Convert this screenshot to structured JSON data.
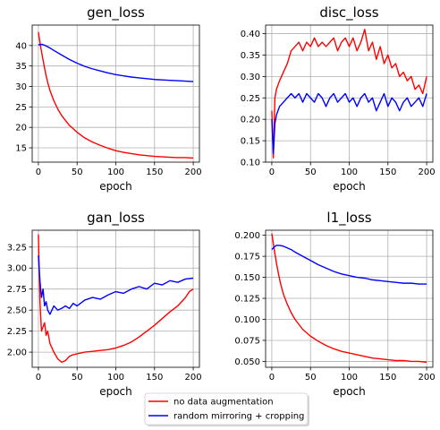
{
  "chart_data": [
    {
      "type": "line",
      "title": "gen_loss",
      "xlabel": "epoch",
      "ylabel": "",
      "xlim": [
        -8,
        208
      ],
      "ylim": [
        11.5,
        45
      ],
      "xticks": [
        0,
        50,
        100,
        150,
        200
      ],
      "yticks": [
        15,
        20,
        25,
        30,
        35,
        40
      ],
      "ytick_labels": [
        "15",
        "20",
        "25",
        "30",
        "35",
        "40"
      ],
      "grid": true,
      "series": [
        {
          "name": "no data augmentation",
          "color": "#ff0000",
          "x": [
            0,
            2,
            4,
            6,
            8,
            10,
            12,
            15,
            20,
            25,
            30,
            40,
            50,
            60,
            70,
            80,
            90,
            100,
            110,
            120,
            130,
            140,
            150,
            160,
            170,
            180,
            190,
            200
          ],
          "y": [
            43.3,
            40.8,
            38.5,
            36.5,
            34.5,
            32.6,
            31.0,
            29.0,
            26.5,
            24.5,
            22.9,
            20.5,
            18.8,
            17.4,
            16.4,
            15.6,
            14.9,
            14.3,
            13.9,
            13.6,
            13.3,
            13.1,
            12.9,
            12.8,
            12.7,
            12.6,
            12.6,
            12.5
          ]
        },
        {
          "name": "random mirroring + cropping",
          "color": "#0000ff",
          "x": [
            0,
            5,
            10,
            15,
            20,
            30,
            40,
            50,
            60,
            70,
            80,
            90,
            100,
            110,
            120,
            130,
            140,
            150,
            160,
            170,
            180,
            190,
            200
          ],
          "y": [
            40.2,
            40.3,
            39.9,
            39.4,
            38.8,
            37.7,
            36.6,
            35.7,
            34.9,
            34.3,
            33.8,
            33.3,
            32.9,
            32.6,
            32.3,
            32.1,
            31.9,
            31.7,
            31.6,
            31.5,
            31.4,
            31.3,
            31.2
          ]
        }
      ]
    },
    {
      "type": "line",
      "title": "disc_loss",
      "xlabel": "epoch",
      "ylabel": "",
      "xlim": [
        -8,
        208
      ],
      "ylim": [
        0.1,
        0.42
      ],
      "xticks": [
        0,
        50,
        100,
        150,
        200
      ],
      "yticks": [
        0.1,
        0.15,
        0.2,
        0.25,
        0.3,
        0.35,
        0.4
      ],
      "ytick_labels": [
        "0.10",
        "0.15",
        "0.20",
        "0.25",
        "0.30",
        "0.35",
        "0.40"
      ],
      "grid": true,
      "series": [
        {
          "name": "no data augmentation",
          "color": "#ff0000",
          "x": [
            0,
            2,
            4,
            6,
            8,
            10,
            15,
            20,
            25,
            30,
            35,
            40,
            45,
            50,
            55,
            60,
            65,
            70,
            75,
            80,
            85,
            90,
            95,
            100,
            105,
            110,
            115,
            120,
            125,
            130,
            135,
            140,
            145,
            150,
            155,
            160,
            165,
            170,
            175,
            180,
            185,
            190,
            195,
            200
          ],
          "y": [
            0.22,
            0.11,
            0.25,
            0.27,
            0.28,
            0.29,
            0.31,
            0.33,
            0.36,
            0.37,
            0.38,
            0.36,
            0.38,
            0.37,
            0.39,
            0.37,
            0.38,
            0.37,
            0.38,
            0.39,
            0.36,
            0.38,
            0.39,
            0.37,
            0.39,
            0.36,
            0.38,
            0.41,
            0.36,
            0.38,
            0.34,
            0.37,
            0.33,
            0.35,
            0.32,
            0.33,
            0.3,
            0.31,
            0.29,
            0.3,
            0.27,
            0.28,
            0.26,
            0.3
          ]
        },
        {
          "name": "random mirroring + cropping",
          "color": "#0000ff",
          "x": [
            0,
            2,
            4,
            6,
            8,
            10,
            15,
            20,
            25,
            30,
            35,
            40,
            45,
            50,
            55,
            60,
            65,
            70,
            75,
            80,
            85,
            90,
            95,
            100,
            105,
            110,
            115,
            120,
            125,
            130,
            135,
            140,
            145,
            150,
            155,
            160,
            165,
            170,
            175,
            180,
            185,
            190,
            195,
            200
          ],
          "y": [
            0.2,
            0.12,
            0.19,
            0.21,
            0.22,
            0.23,
            0.24,
            0.25,
            0.26,
            0.25,
            0.26,
            0.24,
            0.26,
            0.25,
            0.24,
            0.26,
            0.25,
            0.23,
            0.25,
            0.26,
            0.24,
            0.25,
            0.26,
            0.24,
            0.25,
            0.23,
            0.25,
            0.26,
            0.24,
            0.25,
            0.22,
            0.24,
            0.26,
            0.23,
            0.25,
            0.24,
            0.22,
            0.24,
            0.25,
            0.23,
            0.24,
            0.25,
            0.23,
            0.26
          ]
        }
      ]
    },
    {
      "type": "line",
      "title": "gan_loss",
      "xlabel": "epoch",
      "ylabel": "",
      "xlim": [
        -8,
        208
      ],
      "ylim": [
        1.82,
        3.45
      ],
      "xticks": [
        0,
        50,
        100,
        150,
        200
      ],
      "yticks": [
        2.0,
        2.25,
        2.5,
        2.75,
        3.0,
        3.25
      ],
      "ytick_labels": [
        "2.00",
        "2.25",
        "2.50",
        "2.75",
        "3.00",
        "3.25"
      ],
      "grid": true,
      "series": [
        {
          "name": "no data augmentation",
          "color": "#ff0000",
          "x": [
            0,
            2,
            4,
            6,
            8,
            10,
            12,
            15,
            20,
            25,
            30,
            35,
            40,
            45,
            50,
            60,
            70,
            80,
            90,
            100,
            110,
            120,
            130,
            140,
            150,
            160,
            170,
            180,
            190,
            195,
            200
          ],
          "y": [
            3.4,
            2.6,
            2.25,
            2.3,
            2.35,
            2.2,
            2.25,
            2.1,
            2.0,
            1.92,
            1.88,
            1.9,
            1.95,
            1.97,
            1.98,
            2.0,
            2.01,
            2.02,
            2.03,
            2.05,
            2.08,
            2.12,
            2.18,
            2.25,
            2.32,
            2.4,
            2.48,
            2.55,
            2.65,
            2.72,
            2.75
          ]
        },
        {
          "name": "random mirroring + cropping",
          "color": "#0000ff",
          "x": [
            0,
            2,
            4,
            6,
            8,
            10,
            12,
            15,
            20,
            25,
            30,
            35,
            40,
            45,
            50,
            60,
            70,
            80,
            90,
            100,
            110,
            120,
            130,
            140,
            150,
            160,
            170,
            180,
            190,
            200
          ],
          "y": [
            3.15,
            2.85,
            2.65,
            2.75,
            2.55,
            2.6,
            2.5,
            2.45,
            2.55,
            2.5,
            2.52,
            2.55,
            2.52,
            2.58,
            2.55,
            2.62,
            2.65,
            2.63,
            2.68,
            2.72,
            2.7,
            2.75,
            2.78,
            2.75,
            2.82,
            2.8,
            2.85,
            2.83,
            2.87,
            2.88
          ]
        }
      ]
    },
    {
      "type": "line",
      "title": "l1_loss",
      "xlabel": "epoch",
      "ylabel": "",
      "xlim": [
        -8,
        208
      ],
      "ylim": [
        0.043,
        0.206
      ],
      "xticks": [
        0,
        50,
        100,
        150,
        200
      ],
      "yticks": [
        0.05,
        0.075,
        0.1,
        0.125,
        0.15,
        0.175,
        0.2
      ],
      "ytick_labels": [
        "0.050",
        "0.075",
        "0.100",
        "0.125",
        "0.150",
        "0.175",
        "0.200"
      ],
      "grid": true,
      "series": [
        {
          "name": "no data augmentation",
          "color": "#ff0000",
          "x": [
            0,
            2,
            4,
            6,
            8,
            10,
            12,
            15,
            20,
            25,
            30,
            40,
            50,
            60,
            70,
            80,
            90,
            100,
            110,
            120,
            130,
            140,
            150,
            160,
            170,
            180,
            190,
            200
          ],
          "y": [
            0.202,
            0.19,
            0.178,
            0.167,
            0.157,
            0.148,
            0.14,
            0.13,
            0.118,
            0.108,
            0.1,
            0.088,
            0.08,
            0.074,
            0.069,
            0.065,
            0.062,
            0.06,
            0.058,
            0.056,
            0.054,
            0.053,
            0.052,
            0.051,
            0.051,
            0.05,
            0.05,
            0.049
          ]
        },
        {
          "name": "random mirroring + cropping",
          "color": "#0000ff",
          "x": [
            0,
            3,
            6,
            10,
            15,
            20,
            25,
            30,
            40,
            50,
            60,
            70,
            80,
            90,
            100,
            110,
            120,
            130,
            140,
            150,
            160,
            170,
            180,
            190,
            200
          ],
          "y": [
            0.183,
            0.186,
            0.188,
            0.188,
            0.187,
            0.185,
            0.183,
            0.18,
            0.175,
            0.17,
            0.165,
            0.161,
            0.157,
            0.154,
            0.152,
            0.15,
            0.149,
            0.147,
            0.146,
            0.145,
            0.144,
            0.143,
            0.143,
            0.142,
            0.142
          ]
        }
      ]
    }
  ],
  "legend": {
    "placement": "bottom-center",
    "entries": [
      {
        "label": "no data augmentation",
        "color": "#ff0000"
      },
      {
        "label": "random mirroring + cropping",
        "color": "#0000ff"
      }
    ]
  }
}
